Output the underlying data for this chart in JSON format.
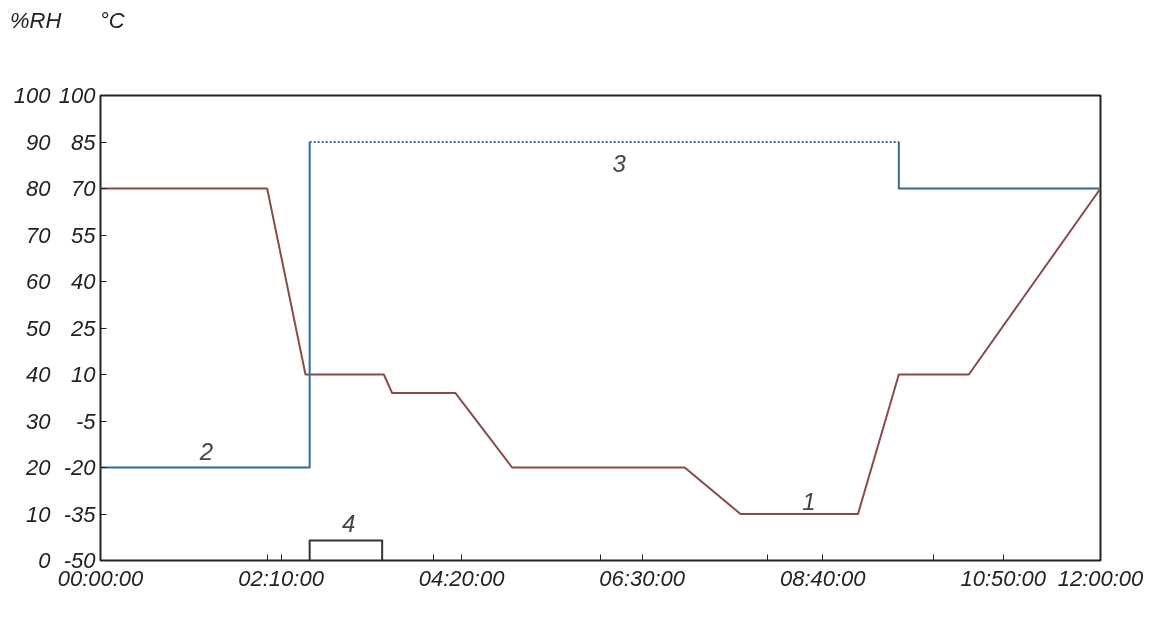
{
  "chart_data": {
    "type": "line",
    "ylabel": "%RH",
    "y2label": "°C",
    "x": [
      0,
      2.0,
      2.46,
      3.4,
      3.5,
      4.26,
      4.94,
      7.01,
      7.68,
      9.09,
      9.58,
      10.42,
      12
    ],
    "series": [
      {
        "color": "#8b4a4a",
        "axis": "y2",
        "line_style": "solid",
        "values": [
          70,
          70,
          10,
          10,
          4,
          4,
          -20,
          -20,
          -35,
          -35,
          10,
          10,
          70
        ]
      },
      {
        "color": "#2f6f8f",
        "line_style": "solid",
        "x": [
          0,
          2.51,
          2.51
        ],
        "values": [
          20,
          20,
          90
        ]
      },
      {
        "color": "#2f6f8f",
        "line_style": "dotted",
        "x": [
          2.51,
          9.58
        ],
        "values": [
          90,
          90
        ]
      },
      {
        "color": "#2f6f8f",
        "line_style": "solid",
        "x": [
          9.58,
          9.58,
          12
        ],
        "values": [
          90,
          80,
          80
        ]
      },
      {
        "color": "#333333",
        "line_style": "solid",
        "x": [
          2.51,
          2.51,
          3.38,
          3.38
        ],
        "values": [
          0,
          4.3,
          4.3,
          0
        ]
      }
    ],
    "xlim": [
      0,
      12
    ],
    "ylim": [
      0,
      100
    ],
    "y2lim": [
      -50,
      100
    ],
    "xticks": [
      {
        "value": 0,
        "label": "00:00:00"
      },
      {
        "value": 2,
        "label": null
      },
      {
        "value": 2.1667,
        "label": "02:10:00"
      },
      {
        "value": 4,
        "label": null
      },
      {
        "value": 4.3333,
        "label": "04:20:00"
      },
      {
        "value": 6,
        "label": null
      },
      {
        "value": 6.5,
        "label": "06:30:00"
      },
      {
        "value": 8,
        "label": null
      },
      {
        "value": 8.6667,
        "label": "08:40:00"
      },
      {
        "value": 10,
        "label": null
      },
      {
        "value": 10.8333,
        "label": "10:50:00"
      },
      {
        "value": 12,
        "label": "12:00:00"
      }
    ],
    "yticks": [
      0,
      10,
      20,
      30,
      40,
      50,
      60,
      70,
      80,
      90,
      100
    ],
    "y2ticks": [
      -50,
      -35,
      -20,
      -5,
      10,
      25,
      40,
      55,
      70,
      85,
      100
    ],
    "annotations": [
      "1",
      "2",
      "3",
      "4"
    ],
    "grid": false
  }
}
